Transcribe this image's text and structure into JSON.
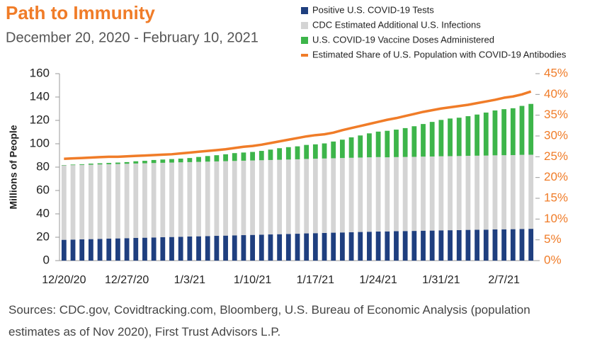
{
  "chart_data": {
    "type": "bar",
    "stacked": true,
    "title": "Path to Immunity",
    "subtitle": "December 20, 2020 - February 10, 2021",
    "ylabel": "Millions of People",
    "note": "Sources: CDC.gov, Covidtracking.com, Bloomberg, U.S. Bureau of Economic Analysis (population estimates as of Nov 2020), First Trust Advisors L.P.",
    "categories": [
      "12/20/20",
      null,
      null,
      null,
      null,
      null,
      null,
      "12/27/20",
      null,
      null,
      null,
      null,
      null,
      null,
      "1/3/21",
      null,
      null,
      null,
      null,
      null,
      null,
      "1/10/21",
      null,
      null,
      null,
      null,
      null,
      null,
      "1/17/21",
      null,
      null,
      null,
      null,
      null,
      null,
      "1/24/21",
      null,
      null,
      null,
      null,
      null,
      null,
      "1/31/21",
      null,
      null,
      null,
      null,
      null,
      null,
      "2/7/21",
      null,
      null,
      null
    ],
    "ylim": [
      0,
      160
    ],
    "yticks": [
      0,
      20,
      40,
      60,
      80,
      100,
      120,
      140,
      160
    ],
    "y2lim": [
      0,
      45
    ],
    "y2ticks": [
      {
        "value": 0,
        "label": "0%"
      },
      {
        "value": 5,
        "label": "5%"
      },
      {
        "value": 10,
        "label": "10%"
      },
      {
        "value": 15,
        "label": "15%"
      },
      {
        "value": 20,
        "label": "20%"
      },
      {
        "value": 25,
        "label": "25%"
      },
      {
        "value": 30,
        "label": "30%"
      },
      {
        "value": 35,
        "label": "35%"
      },
      {
        "value": 40,
        "label": "40%"
      },
      {
        "value": 45,
        "label": "45%"
      }
    ],
    "legend": "top-right",
    "series": [
      {
        "name": "Positive U.S. COVID-19 Tests",
        "color": "#1f3f7f",
        "values": [
          17.8,
          18.0,
          18.2,
          18.4,
          18.6,
          18.8,
          19.0,
          19.2,
          19.4,
          19.6,
          19.8,
          20.0,
          20.2,
          20.4,
          20.6,
          20.8,
          21.0,
          21.2,
          21.4,
          21.6,
          21.8,
          22.0,
          22.2,
          22.4,
          22.6,
          22.8,
          23.0,
          23.3,
          23.5,
          23.7,
          23.9,
          24.1,
          24.3,
          24.5,
          24.7,
          24.9,
          25.0,
          25.2,
          25.3,
          25.4,
          25.6,
          25.7,
          25.9,
          26.0,
          26.1,
          26.3,
          26.4,
          26.5,
          26.7,
          26.8,
          26.9,
          27.1,
          27.2
        ]
      },
      {
        "name": "CDC Estimated Additional U.S. Infections",
        "color": "#d4d4d4",
        "values": [
          63.7,
          63.7,
          63.7,
          63.7,
          63.7,
          63.7,
          63.7,
          63.7,
          63.7,
          63.7,
          63.7,
          63.7,
          63.7,
          63.7,
          63.7,
          63.7,
          63.7,
          63.7,
          63.7,
          63.7,
          63.7,
          63.7,
          63.7,
          63.7,
          63.7,
          63.7,
          63.7,
          63.7,
          63.7,
          63.7,
          63.7,
          63.7,
          63.7,
          63.7,
          63.7,
          63.7,
          63.4,
          63.4,
          63.4,
          63.4,
          63.4,
          63.4,
          63.4,
          63.4,
          63.4,
          63.4,
          63.4,
          63.4,
          63.4,
          63.4,
          63.4,
          63.4,
          63.4
        ]
      },
      {
        "name": "U.S. COVID-19 Vaccine Doses Administered",
        "color": "#3db54a",
        "values": [
          0.3,
          0.5,
          0.6,
          0.9,
          1.0,
          1.1,
          1.2,
          1.4,
          1.9,
          2.1,
          2.6,
          2.8,
          3.0,
          3.2,
          3.5,
          4.2,
          4.8,
          5.3,
          5.9,
          6.7,
          7.0,
          7.3,
          8.0,
          8.9,
          9.9,
          10.6,
          11.1,
          12.0,
          12.3,
          12.9,
          14.3,
          15.7,
          17.5,
          18.9,
          20.5,
          21.8,
          22.7,
          23.5,
          24.7,
          26.2,
          27.9,
          29.6,
          31.1,
          32.2,
          32.8,
          33.9,
          35.2,
          36.8,
          38.4,
          39.4,
          40.1,
          41.9,
          43.5
        ]
      },
      {
        "name": "Estimated Share of U.S. Population with COVID-19 Antibodies",
        "color": "#f07c28",
        "type": "line",
        "axis": "y2",
        "values": [
          24.5,
          24.6,
          24.7,
          24.8,
          24.9,
          25.0,
          25.0,
          25.1,
          25.2,
          25.3,
          25.4,
          25.5,
          25.6,
          25.8,
          26.0,
          26.2,
          26.4,
          26.6,
          26.8,
          27.1,
          27.4,
          27.6,
          27.9,
          28.3,
          28.7,
          29.1,
          29.5,
          29.9,
          30.2,
          30.4,
          30.8,
          31.4,
          31.9,
          32.4,
          32.9,
          33.4,
          33.9,
          34.3,
          34.8,
          35.3,
          35.8,
          36.2,
          36.6,
          36.9,
          37.2,
          37.5,
          37.9,
          38.3,
          38.7,
          39.2,
          39.5,
          40.0,
          40.7
        ]
      }
    ]
  }
}
